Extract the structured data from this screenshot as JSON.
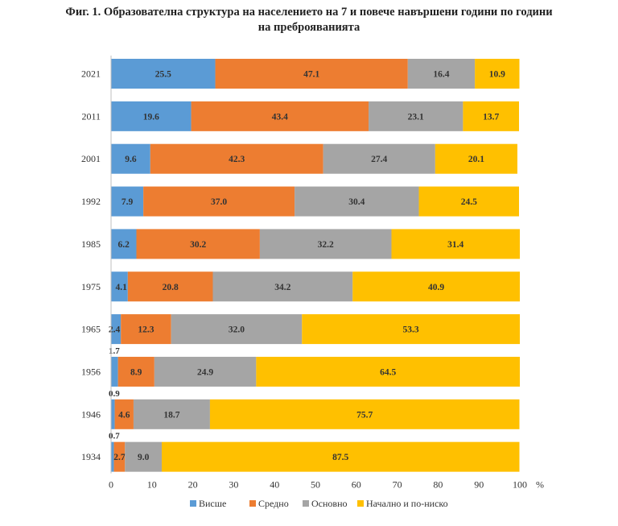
{
  "title_line1": "Фиг. 1. Образователна структура на населението на 7 и повече навършени години по години",
  "title_line2": "на преброяванията",
  "chart_data": {
    "type": "bar",
    "orientation": "horizontal",
    "stacked": true,
    "categories": [
      "2021",
      "2011",
      "2001",
      "1992",
      "1985",
      "1975",
      "1965",
      "1956",
      "1946",
      "1934"
    ],
    "series": [
      {
        "name": "Висше",
        "color": "#5B9BD5",
        "values": [
          25.5,
          19.6,
          9.6,
          7.9,
          6.2,
          4.1,
          2.4,
          1.7,
          0.9,
          0.7
        ]
      },
      {
        "name": "Средно",
        "color": "#ED7D31",
        "values": [
          47.1,
          43.4,
          42.3,
          37.0,
          30.2,
          20.8,
          12.3,
          8.9,
          4.6,
          2.7
        ]
      },
      {
        "name": "Основно",
        "color": "#A5A5A5",
        "values": [
          16.4,
          23.1,
          27.4,
          30.4,
          32.2,
          34.2,
          32.0,
          24.9,
          18.7,
          9.0
        ]
      },
      {
        "name": "Начално и по-ниско",
        "color": "#FFC000",
        "values": [
          10.9,
          13.7,
          20.1,
          24.5,
          31.4,
          40.9,
          53.3,
          64.5,
          75.7,
          87.5
        ]
      }
    ],
    "labels": [
      [
        "25.5",
        "47.1",
        "16.4",
        "10.9"
      ],
      [
        "19.6",
        "43.4",
        "23.1",
        "13.7"
      ],
      [
        "9.6",
        "42.3",
        "27.4",
        "20.1"
      ],
      [
        "7.9",
        "37.0",
        "30.4",
        "24.5"
      ],
      [
        "6.2",
        "30.2",
        "32.2",
        "31.4"
      ],
      [
        "4.1",
        "20.8",
        "34.2",
        "40.9"
      ],
      [
        "2.4",
        "12.3",
        "32.0",
        "53.3"
      ],
      [
        "1.7",
        "8.9",
        "24.9",
        "64.5"
      ],
      [
        "0.9",
        "4.6",
        "18.7",
        "75.7"
      ],
      [
        "0.7",
        "2.7",
        "9.0",
        "87.5"
      ]
    ],
    "xlim": [
      0,
      100
    ],
    "xticks": [
      0,
      10,
      20,
      30,
      40,
      50,
      60,
      70,
      80,
      90,
      100
    ],
    "x_unit": "%",
    "legend_position": "bottom",
    "grid": false
  }
}
